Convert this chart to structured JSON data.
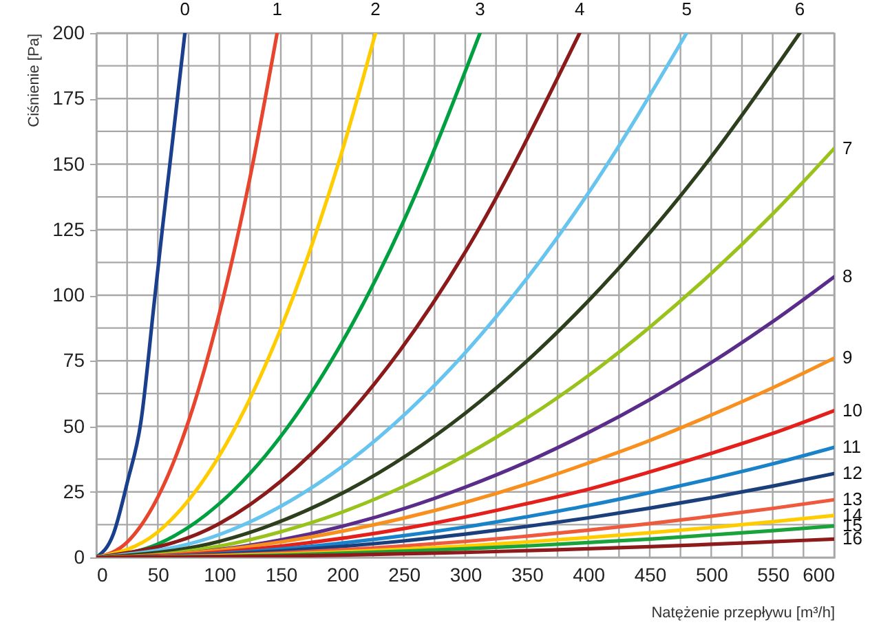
{
  "chart_data": {
    "type": "line",
    "xlabel": "Natężenie przepływu [m³/h]",
    "ylabel": "Ciśnienie [Pa]",
    "xlim": [
      0,
      600
    ],
    "ylim": [
      0,
      200
    ],
    "xticks": [
      0,
      {
        "value": 25,
        "label": null
      },
      50,
      {
        "value": 75,
        "label": null
      },
      100,
      {
        "value": 125,
        "label": null
      },
      150,
      {
        "value": 175,
        "label": null
      },
      200,
      {
        "value": 225,
        "label": null
      },
      250,
      {
        "value": 275,
        "label": null
      },
      300,
      {
        "value": 325,
        "label": null
      },
      350,
      {
        "value": 375,
        "label": null
      },
      400,
      {
        "value": 425,
        "label": null
      },
      450,
      {
        "value": 475,
        "label": null
      },
      500,
      {
        "value": 525,
        "label": null
      },
      550,
      {
        "value": 575,
        "label": null
      },
      600
    ],
    "yticks": [
      0,
      {
        "value": 12.5,
        "label": null
      },
      25,
      {
        "value": 37.5,
        "label": null
      },
      50,
      {
        "value": 62.5,
        "label": null
      },
      75,
      {
        "value": 87.5,
        "label": null
      },
      100,
      {
        "value": 112.5,
        "label": null
      },
      125,
      {
        "value": 137.5,
        "label": null
      },
      150,
      {
        "value": 162.5,
        "label": null
      },
      175,
      {
        "value": 187.5,
        "label": null
      },
      200
    ],
    "grid": true,
    "legend": false,
    "marker": "none",
    "line_style": "solid",
    "series": [
      {
        "name": "0",
        "color": "#1a3f8c",
        "x": [
          0,
          13.8,
          25.3,
          36.2,
          47,
          53.6,
          59.8,
          72
        ],
        "values": [
          0,
          8.9,
          28.9,
          51.6,
          97,
          125,
          150,
          200
        ]
      },
      {
        "name": "1",
        "color": "#e8452e",
        "x": [
          0,
          25,
          50,
          75,
          100,
          125,
          147
        ],
        "values": [
          0,
          5.8,
          23,
          52,
          93,
          145,
          200
        ]
      },
      {
        "name": "2",
        "color": "#ffcc00",
        "x": [
          0,
          50,
          100,
          150,
          200,
          227
        ],
        "values": [
          0,
          9.7,
          38.8,
          87.3,
          155.2,
          200
        ]
      },
      {
        "name": "3",
        "color": "#00a040",
        "x": [
          0,
          50,
          100,
          150,
          200,
          250,
          312
        ],
        "values": [
          0,
          5.1,
          20.5,
          46.2,
          82.2,
          128.4,
          200
        ]
      },
      {
        "name": "4",
        "color": "#8b1a1a",
        "x": [
          0,
          100,
          200,
          300,
          393
        ],
        "values": [
          0,
          12.9,
          51.8,
          116.5,
          200
        ]
      },
      {
        "name": "5",
        "color": "#66c4ee",
        "x": [
          0,
          100,
          200,
          300,
          400,
          480
        ],
        "values": [
          0,
          8.7,
          34.7,
          78.1,
          138.9,
          200
        ]
      },
      {
        "name": "6",
        "color": "#2e3f1e",
        "x": [
          0,
          100,
          200,
          300,
          400,
          500,
          572
        ],
        "values": [
          0,
          6.1,
          24.5,
          55,
          97.8,
          152.8,
          200
        ]
      },
      {
        "name": "7",
        "color": "#99c31c",
        "x": [
          0,
          50,
          100,
          150,
          200,
          250,
          300,
          350,
          400,
          450,
          500,
          550,
          600
        ],
        "values": [
          0,
          1.1,
          4.3,
          9.8,
          17.3,
          27.1,
          39,
          53.1,
          69.3,
          87.8,
          108.3,
          131,
          156
        ]
      },
      {
        "name": "8",
        "color": "#5b2d8a",
        "x": [
          0,
          50,
          100,
          150,
          200,
          250,
          300,
          350,
          400,
          450,
          500,
          550,
          600
        ],
        "values": [
          0,
          0.7,
          3,
          6.7,
          11.9,
          18.6,
          26.8,
          36.4,
          47.6,
          60.2,
          74.3,
          89.9,
          107
        ]
      },
      {
        "name": "9",
        "color": "#f7901e",
        "x": [
          0,
          50,
          100,
          150,
          200,
          250,
          300,
          350,
          400,
          450,
          500,
          550,
          600
        ],
        "values": [
          0,
          0.8,
          2.8,
          5.9,
          10,
          15,
          21,
          28,
          36,
          44.6,
          54.3,
          64.7,
          76
        ]
      },
      {
        "name": "10",
        "color": "#e3201b",
        "x": [
          0,
          50,
          100,
          150,
          200,
          250,
          300,
          350,
          400,
          450,
          500,
          550,
          600
        ],
        "values": [
          0,
          0.6,
          2,
          4.3,
          7.3,
          11,
          15.4,
          20.5,
          26,
          32.6,
          39.7,
          47.3,
          56
        ]
      },
      {
        "name": "11",
        "color": "#1a82c8",
        "x": [
          0,
          50,
          100,
          150,
          200,
          250,
          300,
          350,
          400,
          450,
          500,
          550,
          600
        ],
        "values": [
          0,
          0.4,
          1.5,
          3.2,
          5.5,
          8.3,
          11.6,
          15.5,
          19.8,
          24.7,
          30,
          35.7,
          42
        ]
      },
      {
        "name": "12",
        "color": "#1b3f7a",
        "x": [
          0,
          50,
          100,
          150,
          200,
          250,
          300,
          350,
          400,
          450,
          500,
          550,
          600
        ],
        "values": [
          0,
          0.3,
          1.2,
          2.5,
          4.2,
          6.3,
          8.9,
          11.8,
          15.1,
          18.8,
          22.8,
          27.2,
          32
        ]
      },
      {
        "name": "13",
        "color": "#ee5a3e",
        "x": [
          0,
          50,
          100,
          150,
          200,
          250,
          300,
          350,
          400,
          450,
          500,
          550,
          600
        ],
        "values": [
          0,
          0.2,
          0.8,
          1.7,
          2.9,
          4.4,
          6.1,
          8.1,
          10.4,
          12.9,
          15.7,
          18.7,
          22
        ]
      },
      {
        "name": "14",
        "color": "#ffcc00",
        "x": [
          0,
          50,
          100,
          150,
          200,
          250,
          300,
          350,
          400,
          450,
          500,
          550,
          600
        ],
        "values": [
          0,
          0.2,
          0.6,
          1.2,
          2.1,
          3.2,
          4.4,
          5.9,
          7.6,
          9.4,
          11.4,
          13.6,
          16
        ]
      },
      {
        "name": "15",
        "color": "#19a33a",
        "x": [
          0,
          50,
          100,
          150,
          200,
          250,
          300,
          350,
          400,
          450,
          500,
          550,
          600
        ],
        "values": [
          0,
          0.1,
          0.4,
          0.9,
          1.6,
          2.4,
          3.3,
          4.4,
          5.7,
          7,
          8.6,
          10.2,
          12
        ]
      },
      {
        "name": "16",
        "color": "#8e1b1b",
        "x": [
          0,
          50,
          100,
          150,
          200,
          250,
          300,
          350,
          400,
          450,
          500,
          550,
          600
        ],
        "values": [
          0,
          0.1,
          0.3,
          0.5,
          0.9,
          1.4,
          1.9,
          2.6,
          3.3,
          4.1,
          5,
          6,
          7
        ]
      }
    ]
  }
}
